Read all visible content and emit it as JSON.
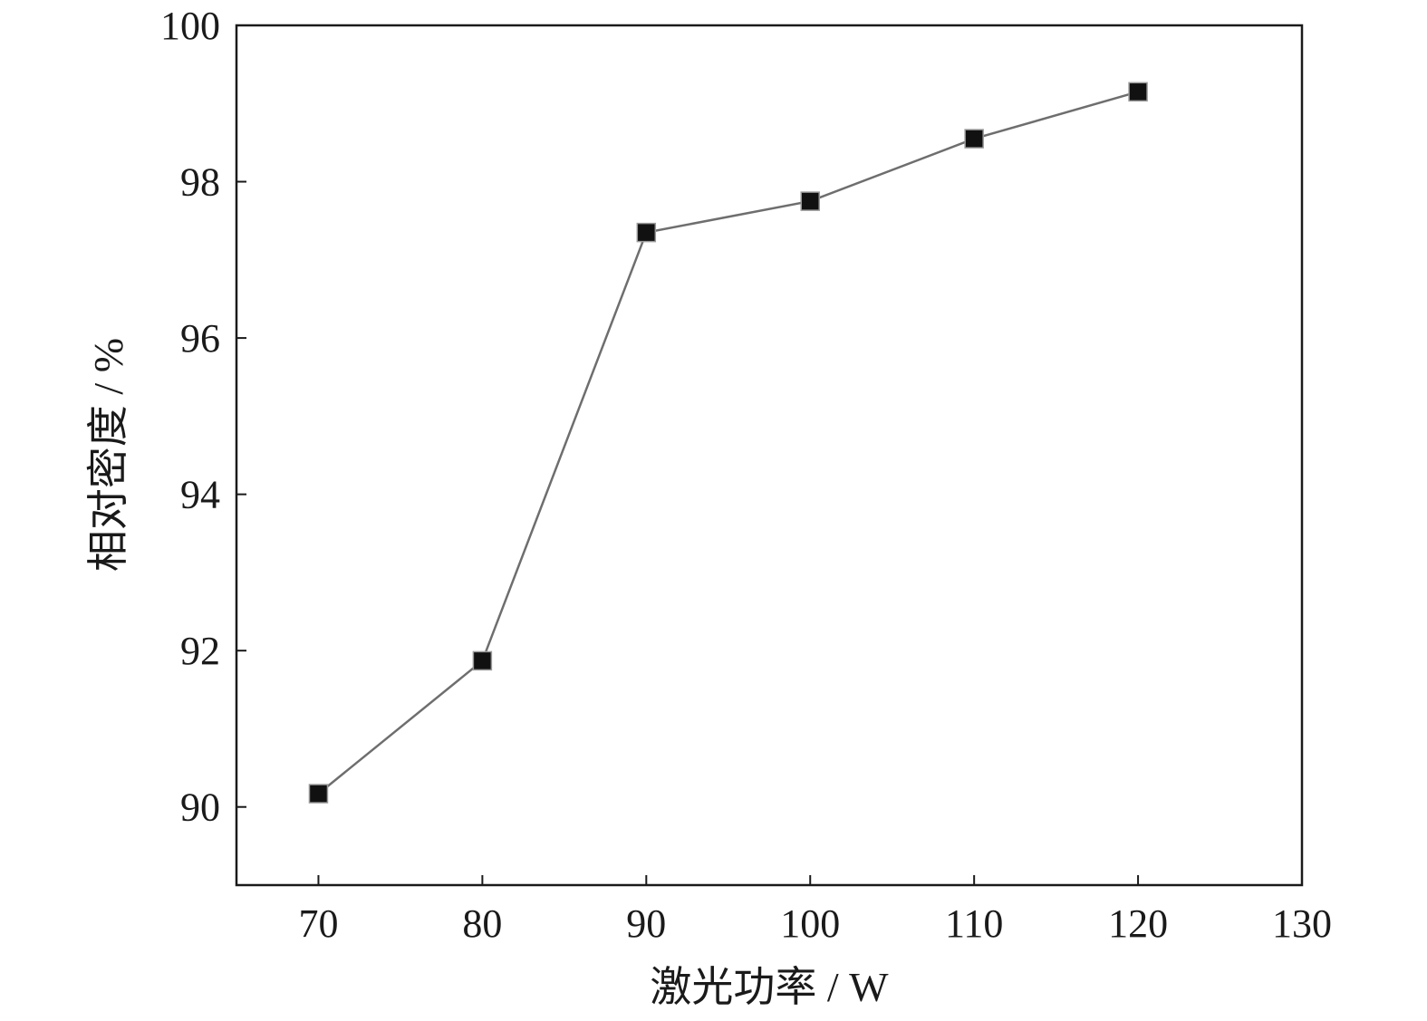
{
  "chart_data": {
    "type": "line",
    "xlabel": "激光功率 / W",
    "ylabel": "相对密度 / %",
    "xlim": [
      65,
      130
    ],
    "ylim": [
      89,
      100
    ],
    "xticks": [
      70,
      80,
      90,
      100,
      110,
      120,
      130
    ],
    "yticks": [
      90,
      92,
      94,
      96,
      98,
      100
    ],
    "grid": false,
    "marker": "square",
    "series": [
      {
        "x": [
          70,
          80,
          90,
          100,
          110,
          120
        ],
        "y": [
          90.17,
          91.87,
          97.35,
          97.75,
          98.55,
          99.15
        ]
      }
    ]
  }
}
